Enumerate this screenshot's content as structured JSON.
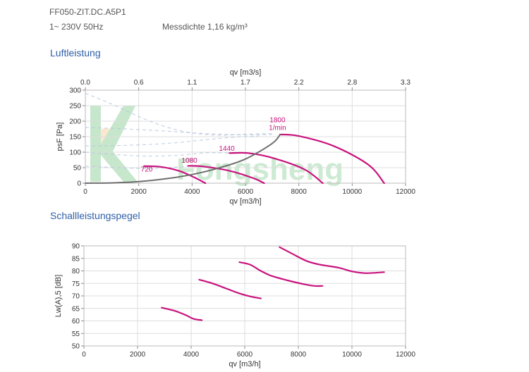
{
  "header": {
    "model": "FF050-ZIT.DC.A5P1",
    "power": "1~ 230V 50Hz",
    "density": "Messdichte 1,16 kg/m³"
  },
  "sections": {
    "luft_title": "Luftleistung",
    "schall_title": "Schallleistungspegel"
  },
  "watermark": "Fongsheng",
  "colors": {
    "curve": "#c8137e",
    "system": "#6e6e6e",
    "grid": "#dddddd",
    "title": "#2f5fa8"
  },
  "chart_data": [
    {
      "type": "line",
      "title": "Luftleistung",
      "xlabel": "qv [m3/h]",
      "ylabel": "psF [Pa]",
      "x2label": "qv [m3/s]",
      "xlim": [
        0,
        12000
      ],
      "ylim": [
        0,
        300
      ],
      "x_ticks": [
        "0",
        "2000",
        "4000",
        "6000",
        "8000",
        "10000",
        "12000"
      ],
      "y_ticks": [
        "0",
        "50",
        "100",
        "150",
        "200",
        "250",
        "300"
      ],
      "x2_ticks": [
        "0.0",
        "0.6",
        "1.1",
        "1.7",
        "2.2",
        "2.8",
        "3.3"
      ],
      "grid": true,
      "series": [
        {
          "name": "720",
          "label_at": [
            2300,
            38
          ],
          "points": [
            [
              2200,
              55
            ],
            [
              2800,
              53
            ],
            [
              3500,
              40
            ],
            [
              4100,
              18
            ],
            [
              4500,
              0
            ]
          ]
        },
        {
          "name": "1080",
          "label_at": [
            3900,
            66
          ],
          "points": [
            [
              3850,
              56
            ],
            [
              4400,
              54
            ],
            [
              5400,
              40
            ],
            [
              6300,
              16
            ],
            [
              6700,
              0
            ]
          ]
        },
        {
          "name": "1440",
          "label_at": [
            5300,
            104
          ],
          "points": [
            [
              5400,
              97
            ],
            [
              6100,
              97
            ],
            [
              7000,
              82
            ],
            [
              8200,
              45
            ],
            [
              8900,
              0
            ]
          ]
        },
        {
          "name": "1800",
          "unit": "1/min",
          "label_at": [
            7200,
            197
          ],
          "points": [
            [
              7300,
              157
            ],
            [
              8000,
              152
            ],
            [
              9300,
              120
            ],
            [
              10600,
              60
            ],
            [
              11200,
              0
            ]
          ]
        },
        {
          "name": "system",
          "points": [
            [
              0,
              0
            ],
            [
              1000,
              1
            ],
            [
              2000,
              5
            ],
            [
              3000,
              14
            ],
            [
              4000,
              28
            ],
            [
              5000,
              49
            ],
            [
              6000,
              78
            ],
            [
              7000,
              128
            ],
            [
              7300,
              157
            ]
          ]
        }
      ],
      "background_curves": [
        {
          "points": [
            [
              0,
              290
            ],
            [
              1000,
              255
            ],
            [
              2000,
              215
            ],
            [
              3000,
              182
            ],
            [
              4000,
              162
            ],
            [
              5000,
              155
            ],
            [
              6000,
              158
            ],
            [
              7000,
              160
            ]
          ]
        },
        {
          "points": [
            [
              0,
              180
            ],
            [
              1500,
              175
            ],
            [
              3000,
              168
            ],
            [
              4500,
              160
            ],
            [
              6000,
              156
            ],
            [
              7000,
              157
            ]
          ]
        },
        {
          "points": [
            [
              0,
              120
            ],
            [
              1500,
              122
            ],
            [
              3000,
              128
            ],
            [
              4500,
              140
            ],
            [
              5500,
              148
            ],
            [
              6500,
              152
            ]
          ]
        },
        {
          "points": [
            [
              0,
              100
            ],
            [
              2000,
              88
            ],
            [
              3500,
              90
            ],
            [
              4500,
              98
            ],
            [
              5500,
              97
            ]
          ]
        },
        {
          "points": [
            [
              0,
              55
            ],
            [
              2000,
              48
            ],
            [
              3500,
              52
            ],
            [
              4200,
              58
            ]
          ]
        }
      ]
    },
    {
      "type": "line",
      "title": "Schallleistungspegel",
      "xlabel": "qv [m3/h]",
      "ylabel": "Lw(A),5 [dB]",
      "xlim": [
        0,
        12000
      ],
      "ylim": [
        50,
        90
      ],
      "x_ticks": [
        "0",
        "2000",
        "4000",
        "6000",
        "8000",
        "10000",
        "12000"
      ],
      "y_ticks": [
        "50",
        "55",
        "60",
        "65",
        "70",
        "75",
        "80",
        "85",
        "90"
      ],
      "grid": true,
      "series": [
        {
          "name": "720",
          "points": [
            [
              2900,
              65.3
            ],
            [
              3400,
              64
            ],
            [
              3800,
              62.3
            ],
            [
              4100,
              60.8
            ],
            [
              4400,
              60.3
            ]
          ]
        },
        {
          "name": "1080",
          "points": [
            [
              4300,
              76.5
            ],
            [
              4800,
              75
            ],
            [
              5300,
              73
            ],
            [
              5800,
              71
            ],
            [
              6200,
              69.8
            ],
            [
              6600,
              69
            ]
          ]
        },
        {
          "name": "1440",
          "points": [
            [
              5800,
              83.5
            ],
            [
              6200,
              82.5
            ],
            [
              6600,
              80
            ],
            [
              7000,
              78
            ],
            [
              7600,
              76.2
            ],
            [
              8200,
              74.7
            ],
            [
              8600,
              74
            ],
            [
              8900,
              74
            ]
          ]
        },
        {
          "name": "1800",
          "points": [
            [
              7300,
              89.5
            ],
            [
              7800,
              86.7
            ],
            [
              8300,
              84
            ],
            [
              8800,
              82.5
            ],
            [
              9500,
              81.3
            ],
            [
              10000,
              79.8
            ],
            [
              10500,
              79.1
            ],
            [
              11200,
              79.5
            ]
          ]
        }
      ]
    }
  ]
}
